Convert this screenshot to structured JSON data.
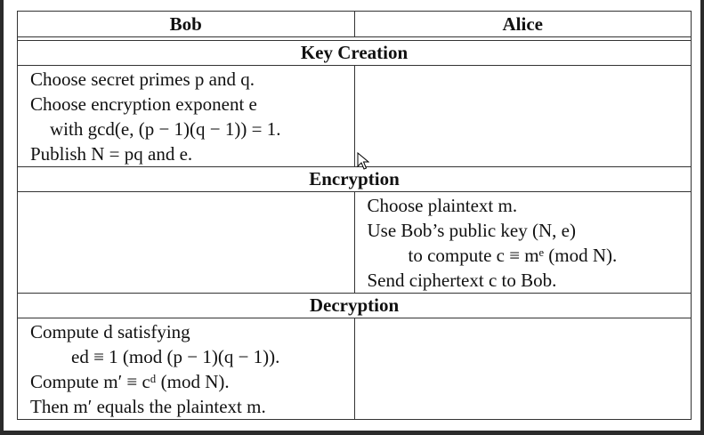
{
  "header": {
    "left": "Bob",
    "right": "Alice"
  },
  "sections": {
    "key_creation": {
      "title": "Key Creation",
      "bob": [
        "Choose secret primes p and q.",
        "Choose encryption exponent e",
        "with gcd(e, (p − 1)(q − 1)) = 1.",
        "Publish N = pq and e."
      ],
      "alice": []
    },
    "encryption": {
      "title": "Encryption",
      "bob": [],
      "alice": [
        "Choose plaintext m.",
        "Use Bob’s public key (N, e)",
        "to compute c ≡ mᵉ (mod N).",
        "Send ciphertext c to Bob."
      ]
    },
    "decryption": {
      "title": "Decryption",
      "bob": [
        "Compute d satisfying",
        "ed ≡ 1 (mod (p − 1)(q − 1)).",
        "Compute m′ ≡ cᵈ (mod N).",
        "Then m′ equals the plaintext m."
      ],
      "alice": []
    }
  }
}
